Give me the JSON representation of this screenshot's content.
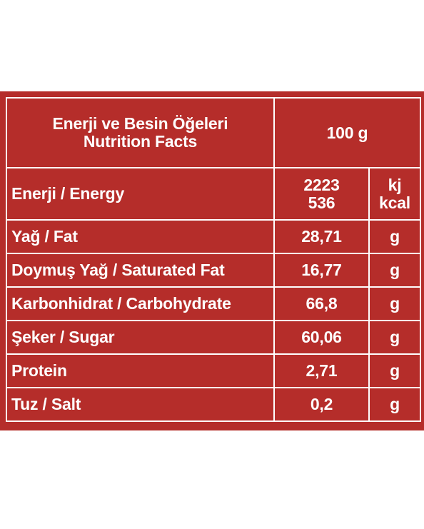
{
  "colors": {
    "panel_background": "#b52d2a",
    "text": "#ffffff",
    "grid_lines": "#ffffff",
    "page_background": "#ffffff"
  },
  "header": {
    "title_tr": "Enerji ve Besin Öğeleri",
    "title_en": "Nutrition Facts",
    "serving": "100 g"
  },
  "energy": {
    "label": "Enerji / Energy",
    "value_kj": "2223",
    "value_kcal": "536",
    "unit_kj": "kj",
    "unit_kcal": "kcal"
  },
  "nutrients": [
    {
      "label": "Yağ / Fat",
      "value": "28,71",
      "unit": "g"
    },
    {
      "label": "Doymuş Yağ / Saturated Fat",
      "value": "16,77",
      "unit": "g"
    },
    {
      "label": "Karbonhidrat / Carbohydrate",
      "value": "66,8",
      "unit": "g"
    },
    {
      "label": "Şeker / Sugar",
      "value": "60,06",
      "unit": "g"
    },
    {
      "label": "Protein",
      "value": "2,71",
      "unit": "g"
    },
    {
      "label": "Tuz / Salt",
      "value": "0,2",
      "unit": "g"
    }
  ]
}
